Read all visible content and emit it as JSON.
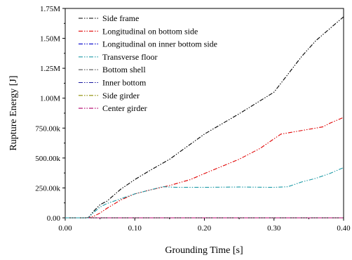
{
  "chart_data": {
    "type": "line",
    "title": "",
    "xlabel": "Grounding Time [s]",
    "ylabel": "Rupture Energy [J]",
    "xlim": [
      0.0,
      0.4
    ],
    "ylim": [
      0,
      1750000
    ],
    "x_ticks": [
      "0.00",
      "0.10",
      "0.20",
      "0.30",
      "0.40"
    ],
    "y_ticks": [
      "0.00",
      "250.00k",
      "500.00k",
      "750.00k",
      "1.00M",
      "1.25M",
      "1.50M",
      "1.75M"
    ],
    "x_tick_values": [
      0.0,
      0.1,
      0.2,
      0.3,
      0.4
    ],
    "y_tick_values": [
      0,
      250000,
      500000,
      750000,
      1000000,
      1250000,
      1500000,
      1750000
    ],
    "grid": false,
    "legend_position": "top-left",
    "series": [
      {
        "name": "Side frame",
        "color": "#000000",
        "x": [
          0.0,
          0.033,
          0.04,
          0.05,
          0.06,
          0.07,
          0.08,
          0.1,
          0.12,
          0.15,
          0.2,
          0.25,
          0.3,
          0.32,
          0.34,
          0.36,
          0.38,
          0.4
        ],
        "y": [
          0,
          0,
          50000,
          110000,
          140000,
          190000,
          240000,
          320000,
          390000,
          490000,
          700000,
          870000,
          1050000,
          1200000,
          1350000,
          1480000,
          1580000,
          1680000
        ]
      },
      {
        "name": "Longitudinal on bottom side",
        "color": "#e00000",
        "x": [
          0.0,
          0.03,
          0.04,
          0.05,
          0.06,
          0.08,
          0.1,
          0.12,
          0.15,
          0.18,
          0.2,
          0.25,
          0.28,
          0.3,
          0.31,
          0.32,
          0.33,
          0.35,
          0.37,
          0.38,
          0.4
        ],
        "y": [
          0,
          0,
          10000,
          40000,
          80000,
          150000,
          200000,
          230000,
          270000,
          320000,
          370000,
          490000,
          580000,
          660000,
          700000,
          710000,
          720000,
          740000,
          760000,
          790000,
          840000
        ]
      },
      {
        "name": "Longitudinal on inner bottom side",
        "color": "#0000cc",
        "x": [
          0.0,
          0.4
        ],
        "y": [
          0,
          0
        ]
      },
      {
        "name": "Transverse floor",
        "color": "#1c9aa6",
        "x": [
          0.0,
          0.033,
          0.04,
          0.05,
          0.06,
          0.08,
          0.1,
          0.12,
          0.14,
          0.16,
          0.2,
          0.25,
          0.3,
          0.32,
          0.34,
          0.36,
          0.38,
          0.4
        ],
        "y": [
          0,
          0,
          40000,
          90000,
          120000,
          160000,
          200000,
          230000,
          260000,
          255000,
          255000,
          258000,
          255000,
          260000,
          300000,
          330000,
          370000,
          420000
        ]
      },
      {
        "name": "Bottom shell",
        "color": "#555555",
        "x": [
          0.0,
          0.4
        ],
        "y": [
          0,
          0
        ]
      },
      {
        "name": "Inner bottom",
        "color": "#1a1aa0",
        "x": [
          0.0,
          0.4
        ],
        "y": [
          0,
          0
        ]
      },
      {
        "name": "Side girder",
        "color": "#8c8c00",
        "x": [
          0.0,
          0.4
        ],
        "y": [
          0,
          0
        ]
      },
      {
        "name": "Center girder",
        "color": "#b0006a",
        "x": [
          0.0,
          0.4
        ],
        "y": [
          0,
          0
        ]
      }
    ]
  }
}
